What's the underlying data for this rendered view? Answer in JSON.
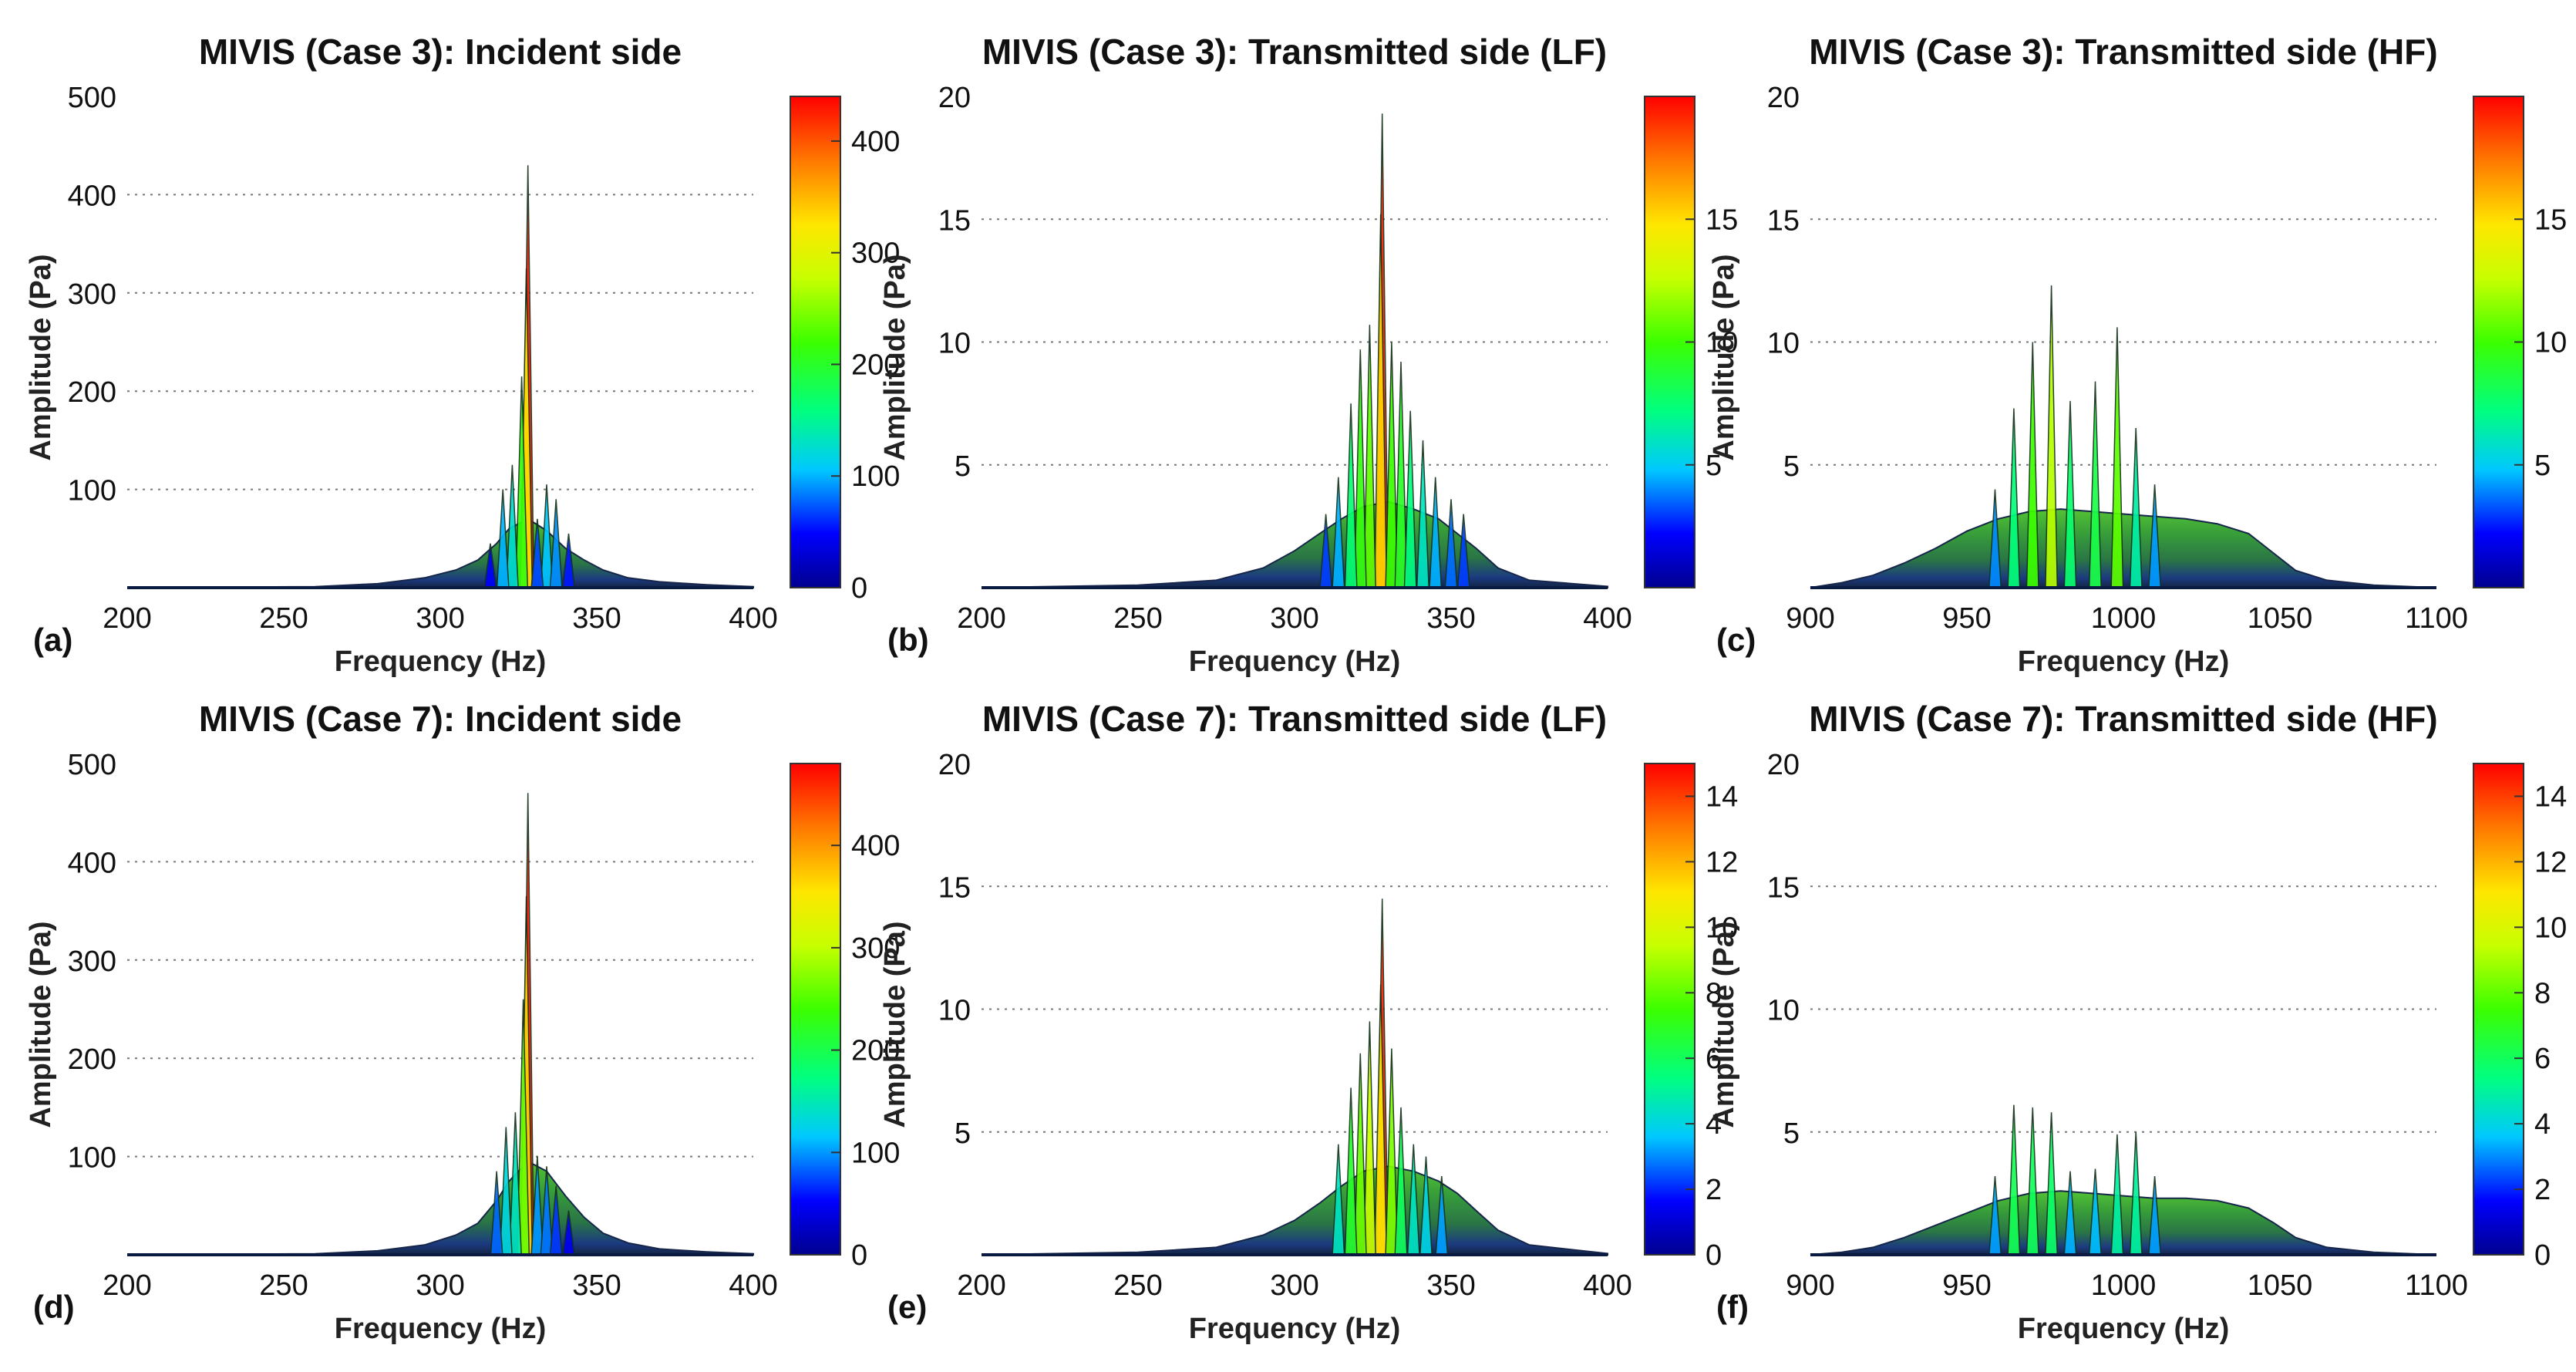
{
  "chart_data": [
    {
      "type": "area",
      "panel_label": "(a)",
      "title": "MIVIS (Case 3): Incident side",
      "xlabel": "Frequency (Hz)",
      "ylabel": "Amplitude (Pa)",
      "xlim": [
        200,
        400
      ],
      "ylim": [
        0,
        500
      ],
      "xticks": [
        "200",
        "250",
        "300",
        "350",
        "400"
      ],
      "yticks": [
        "100",
        "200",
        "300",
        "400",
        "500"
      ],
      "grid": "horizontal-dotted",
      "colorbar": {
        "min": 0,
        "max": 440,
        "ticks": [
          "0",
          "100",
          "200",
          "300",
          "400"
        ]
      },
      "peaks": [
        {
          "x": 328,
          "y": 430
        },
        {
          "x": 327.5,
          "y": 325
        },
        {
          "x": 326,
          "y": 215
        },
        {
          "x": 323,
          "y": 125
        },
        {
          "x": 320,
          "y": 100
        },
        {
          "x": 334,
          "y": 105
        },
        {
          "x": 337,
          "y": 90
        },
        {
          "x": 331,
          "y": 70
        },
        {
          "x": 341,
          "y": 55
        },
        {
          "x": 316,
          "y": 45
        }
      ],
      "envelope": [
        [
          200,
          0
        ],
        [
          260,
          1
        ],
        [
          280,
          4
        ],
        [
          295,
          10
        ],
        [
          305,
          18
        ],
        [
          312,
          28
        ],
        [
          318,
          45
        ],
        [
          322,
          60
        ],
        [
          328,
          70
        ],
        [
          334,
          58
        ],
        [
          340,
          40
        ],
        [
          346,
          28
        ],
        [
          352,
          18
        ],
        [
          360,
          10
        ],
        [
          370,
          6
        ],
        [
          385,
          3
        ],
        [
          400,
          1
        ]
      ]
    },
    {
      "type": "area",
      "panel_label": "(b)",
      "title": "MIVIS (Case 3): Transmitted side (LF)",
      "xlabel": "Frequency (Hz)",
      "ylabel": "Amplitude (Pa)",
      "xlim": [
        200,
        400
      ],
      "ylim": [
        0,
        20
      ],
      "xticks": [
        "200",
        "250",
        "300",
        "350",
        "400"
      ],
      "yticks": [
        "5",
        "10",
        "15",
        "20"
      ],
      "grid": "horizontal-dotted",
      "colorbar": {
        "min": 0,
        "max": 20,
        "ticks": [
          "5",
          "10",
          "15"
        ]
      },
      "peaks": [
        {
          "x": 328,
          "y": 19.3
        },
        {
          "x": 327.5,
          "y": 15.2
        },
        {
          "x": 324,
          "y": 10.7
        },
        {
          "x": 321,
          "y": 9.7
        },
        {
          "x": 318,
          "y": 7.5
        },
        {
          "x": 331,
          "y": 10
        },
        {
          "x": 334,
          "y": 9.2
        },
        {
          "x": 337,
          "y": 7.2
        },
        {
          "x": 341,
          "y": 6
        },
        {
          "x": 345,
          "y": 4.5
        },
        {
          "x": 350,
          "y": 3.6
        },
        {
          "x": 314,
          "y": 4.5
        },
        {
          "x": 310,
          "y": 3
        },
        {
          "x": 354,
          "y": 3
        }
      ],
      "envelope": [
        [
          200,
          0
        ],
        [
          250,
          0.1
        ],
        [
          275,
          0.3
        ],
        [
          290,
          0.8
        ],
        [
          300,
          1.5
        ],
        [
          308,
          2.2
        ],
        [
          315,
          2.8
        ],
        [
          322,
          3.3
        ],
        [
          330,
          3.5
        ],
        [
          338,
          3.2
        ],
        [
          346,
          2.8
        ],
        [
          352,
          2.2
        ],
        [
          358,
          1.6
        ],
        [
          365,
          0.8
        ],
        [
          375,
          0.3
        ],
        [
          400,
          0.05
        ]
      ]
    },
    {
      "type": "area",
      "panel_label": "(c)",
      "title": "MIVIS (Case 3): Transmitted side (HF)",
      "xlabel": "Frequency (Hz)",
      "ylabel": "Amplitude (Pa)",
      "xlim": [
        900,
        1100
      ],
      "ylim": [
        0,
        20
      ],
      "xticks": [
        "900",
        "950",
        "1000",
        "1050",
        "1100"
      ],
      "yticks": [
        "5",
        "10",
        "15",
        "20"
      ],
      "grid": "horizontal-dotted",
      "colorbar": {
        "min": 0,
        "max": 20,
        "ticks": [
          "5",
          "10",
          "15"
        ]
      },
      "peaks": [
        {
          "x": 977,
          "y": 12.3
        },
        {
          "x": 971,
          "y": 10
        },
        {
          "x": 965,
          "y": 7.3
        },
        {
          "x": 983,
          "y": 7.6
        },
        {
          "x": 991,
          "y": 8.4
        },
        {
          "x": 998,
          "y": 10.6
        },
        {
          "x": 1004,
          "y": 6.5
        },
        {
          "x": 959,
          "y": 4
        },
        {
          "x": 1010,
          "y": 4.2
        }
      ],
      "envelope": [
        [
          900,
          0
        ],
        [
          910,
          0.2
        ],
        [
          920,
          0.5
        ],
        [
          930,
          1
        ],
        [
          940,
          1.6
        ],
        [
          950,
          2.3
        ],
        [
          960,
          2.8
        ],
        [
          970,
          3.1
        ],
        [
          980,
          3.2
        ],
        [
          990,
          3.1
        ],
        [
          1000,
          3
        ],
        [
          1010,
          2.9
        ],
        [
          1020,
          2.8
        ],
        [
          1030,
          2.6
        ],
        [
          1040,
          2.2
        ],
        [
          1048,
          1.4
        ],
        [
          1055,
          0.7
        ],
        [
          1065,
          0.3
        ],
        [
          1080,
          0.1
        ],
        [
          1100,
          0
        ]
      ]
    },
    {
      "type": "area",
      "panel_label": "(d)",
      "title": "MIVIS (Case 7): Incident side",
      "xlabel": "Frequency (Hz)",
      "ylabel": "Amplitude (Pa)",
      "xlim": [
        200,
        400
      ],
      "ylim": [
        0,
        500
      ],
      "xticks": [
        "200",
        "250",
        "300",
        "350",
        "400"
      ],
      "yticks": [
        "100",
        "200",
        "300",
        "400",
        "500"
      ],
      "grid": "horizontal-dotted",
      "colorbar": {
        "min": 0,
        "max": 480,
        "ticks": [
          "0",
          "100",
          "200",
          "300",
          "400"
        ]
      },
      "peaks": [
        {
          "x": 328,
          "y": 470
        },
        {
          "x": 327.5,
          "y": 365
        },
        {
          "x": 326.5,
          "y": 260
        },
        {
          "x": 324,
          "y": 145
        },
        {
          "x": 321,
          "y": 130
        },
        {
          "x": 318,
          "y": 85
        },
        {
          "x": 331,
          "y": 100
        },
        {
          "x": 334,
          "y": 90
        },
        {
          "x": 337,
          "y": 70
        },
        {
          "x": 341,
          "y": 45
        }
      ],
      "envelope": [
        [
          200,
          0
        ],
        [
          260,
          1
        ],
        [
          280,
          4
        ],
        [
          295,
          10
        ],
        [
          305,
          20
        ],
        [
          312,
          32
        ],
        [
          318,
          55
        ],
        [
          322,
          75
        ],
        [
          328,
          95
        ],
        [
          334,
          85
        ],
        [
          340,
          60
        ],
        [
          346,
          38
        ],
        [
          352,
          22
        ],
        [
          360,
          12
        ],
        [
          370,
          6
        ],
        [
          385,
          3
        ],
        [
          400,
          1
        ]
      ]
    },
    {
      "type": "area",
      "panel_label": "(e)",
      "title": "MIVIS (Case 7): Transmitted side (LF)",
      "xlabel": "Frequency (Hz)",
      "ylabel": "Amplitude (Pa)",
      "xlim": [
        200,
        400
      ],
      "ylim": [
        0,
        20
      ],
      "xticks": [
        "200",
        "250",
        "300",
        "350",
        "400"
      ],
      "yticks": [
        "5",
        "10",
        "15",
        "20"
      ],
      "grid": "horizontal-dotted",
      "colorbar": {
        "min": 0,
        "max": 15,
        "ticks": [
          "0",
          "2",
          "4",
          "6",
          "8",
          "10",
          "12",
          "14"
        ]
      },
      "peaks": [
        {
          "x": 328,
          "y": 14.5
        },
        {
          "x": 327.5,
          "y": 11
        },
        {
          "x": 324,
          "y": 9.5
        },
        {
          "x": 321,
          "y": 8.2
        },
        {
          "x": 318,
          "y": 6.8
        },
        {
          "x": 331,
          "y": 8.4
        },
        {
          "x": 334,
          "y": 6
        },
        {
          "x": 314,
          "y": 4.5
        },
        {
          "x": 338,
          "y": 4.5
        },
        {
          "x": 342,
          "y": 4
        },
        {
          "x": 347,
          "y": 3.2
        }
      ],
      "envelope": [
        [
          200,
          0
        ],
        [
          250,
          0.1
        ],
        [
          275,
          0.3
        ],
        [
          290,
          0.8
        ],
        [
          300,
          1.4
        ],
        [
          308,
          2.1
        ],
        [
          315,
          2.8
        ],
        [
          322,
          3.4
        ],
        [
          330,
          3.6
        ],
        [
          338,
          3.4
        ],
        [
          346,
          3
        ],
        [
          352,
          2.5
        ],
        [
          358,
          1.8
        ],
        [
          365,
          1
        ],
        [
          375,
          0.4
        ],
        [
          400,
          0.05
        ]
      ]
    },
    {
      "type": "area",
      "panel_label": "(f)",
      "title": "MIVIS (Case 7): Transmitted side (HF)",
      "xlabel": "Frequency (Hz)",
      "ylabel": "Amplitude (Pa)",
      "xlim": [
        900,
        1100
      ],
      "ylim": [
        0,
        20
      ],
      "xticks": [
        "900",
        "950",
        "1000",
        "1050",
        "1100"
      ],
      "yticks": [
        "5",
        "10",
        "15",
        "20"
      ],
      "grid": "horizontal-dotted",
      "colorbar": {
        "min": 0,
        "max": 15,
        "ticks": [
          "0",
          "2",
          "4",
          "6",
          "8",
          "10",
          "12",
          "14"
        ]
      },
      "peaks": [
        {
          "x": 965,
          "y": 6.1
        },
        {
          "x": 971,
          "y": 6
        },
        {
          "x": 977,
          "y": 5.8
        },
        {
          "x": 959,
          "y": 3.2
        },
        {
          "x": 983,
          "y": 3.4
        },
        {
          "x": 998,
          "y": 4.9
        },
        {
          "x": 1004,
          "y": 5
        },
        {
          "x": 991,
          "y": 3.5
        },
        {
          "x": 1010,
          "y": 3.2
        }
      ],
      "envelope": [
        [
          900,
          0
        ],
        [
          910,
          0.1
        ],
        [
          920,
          0.3
        ],
        [
          930,
          0.7
        ],
        [
          940,
          1.2
        ],
        [
          950,
          1.7
        ],
        [
          960,
          2.2
        ],
        [
          970,
          2.5
        ],
        [
          980,
          2.6
        ],
        [
          990,
          2.5
        ],
        [
          1000,
          2.4
        ],
        [
          1010,
          2.3
        ],
        [
          1020,
          2.3
        ],
        [
          1030,
          2.2
        ],
        [
          1040,
          1.9
        ],
        [
          1048,
          1.3
        ],
        [
          1055,
          0.7
        ],
        [
          1065,
          0.3
        ],
        [
          1080,
          0.1
        ],
        [
          1100,
          0
        ]
      ]
    }
  ]
}
